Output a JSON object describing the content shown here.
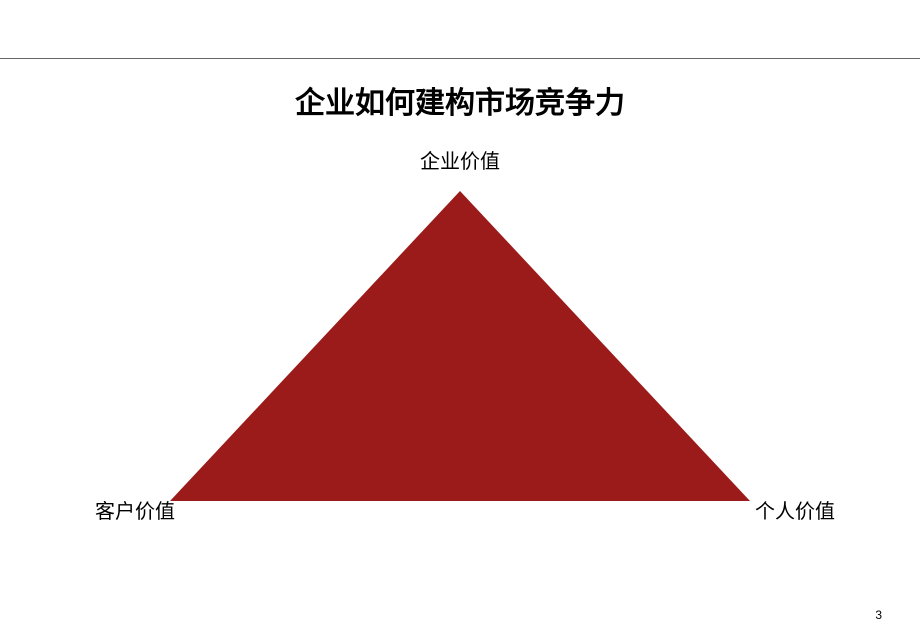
{
  "title": "企业如何建构市场竞争力",
  "diagram": {
    "type": "triangle",
    "apex_label": "企业价值",
    "left_label": "客户价值",
    "right_label": "个人价值",
    "triangle_color": "#9b1b1b",
    "triangle_half_width": 290,
    "triangle_height": 310,
    "background_color": "#ffffff",
    "divider_color": "#666666"
  },
  "typography": {
    "title_fontsize": 30,
    "title_fontweight": "bold",
    "label_fontsize": 20,
    "page_number_fontsize": 12,
    "font_family": "SimSun"
  },
  "page_number": "3"
}
